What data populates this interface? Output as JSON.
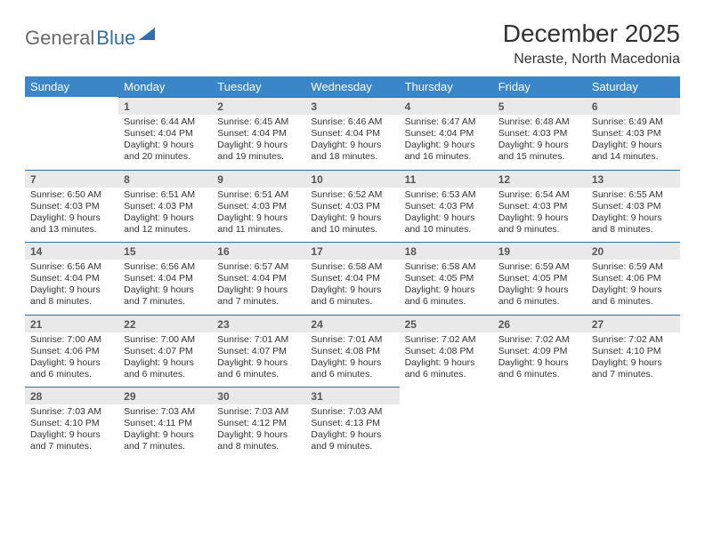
{
  "brand": {
    "part1": "General",
    "part2": "Blue"
  },
  "title": "December 2025",
  "location": "Neraste, North Macedonia",
  "colors": {
    "header_bg": "#3a86c8",
    "header_text": "#ffffff",
    "daynum_bg": "#e9e9e9",
    "rule": "#2f6fab",
    "text": "#333333"
  },
  "weekdays": [
    "Sunday",
    "Monday",
    "Tuesday",
    "Wednesday",
    "Thursday",
    "Friday",
    "Saturday"
  ],
  "weeks": [
    [
      {
        "n": "",
        "sunrise": "",
        "sunset": "",
        "daylight": ""
      },
      {
        "n": "1",
        "sunrise": "Sunrise: 6:44 AM",
        "sunset": "Sunset: 4:04 PM",
        "daylight": "Daylight: 9 hours and 20 minutes."
      },
      {
        "n": "2",
        "sunrise": "Sunrise: 6:45 AM",
        "sunset": "Sunset: 4:04 PM",
        "daylight": "Daylight: 9 hours and 19 minutes."
      },
      {
        "n": "3",
        "sunrise": "Sunrise: 6:46 AM",
        "sunset": "Sunset: 4:04 PM",
        "daylight": "Daylight: 9 hours and 18 minutes."
      },
      {
        "n": "4",
        "sunrise": "Sunrise: 6:47 AM",
        "sunset": "Sunset: 4:04 PM",
        "daylight": "Daylight: 9 hours and 16 minutes."
      },
      {
        "n": "5",
        "sunrise": "Sunrise: 6:48 AM",
        "sunset": "Sunset: 4:03 PM",
        "daylight": "Daylight: 9 hours and 15 minutes."
      },
      {
        "n": "6",
        "sunrise": "Sunrise: 6:49 AM",
        "sunset": "Sunset: 4:03 PM",
        "daylight": "Daylight: 9 hours and 14 minutes."
      }
    ],
    [
      {
        "n": "7",
        "sunrise": "Sunrise: 6:50 AM",
        "sunset": "Sunset: 4:03 PM",
        "daylight": "Daylight: 9 hours and 13 minutes."
      },
      {
        "n": "8",
        "sunrise": "Sunrise: 6:51 AM",
        "sunset": "Sunset: 4:03 PM",
        "daylight": "Daylight: 9 hours and 12 minutes."
      },
      {
        "n": "9",
        "sunrise": "Sunrise: 6:51 AM",
        "sunset": "Sunset: 4:03 PM",
        "daylight": "Daylight: 9 hours and 11 minutes."
      },
      {
        "n": "10",
        "sunrise": "Sunrise: 6:52 AM",
        "sunset": "Sunset: 4:03 PM",
        "daylight": "Daylight: 9 hours and 10 minutes."
      },
      {
        "n": "11",
        "sunrise": "Sunrise: 6:53 AM",
        "sunset": "Sunset: 4:03 PM",
        "daylight": "Daylight: 9 hours and 10 minutes."
      },
      {
        "n": "12",
        "sunrise": "Sunrise: 6:54 AM",
        "sunset": "Sunset: 4:03 PM",
        "daylight": "Daylight: 9 hours and 9 minutes."
      },
      {
        "n": "13",
        "sunrise": "Sunrise: 6:55 AM",
        "sunset": "Sunset: 4:03 PM",
        "daylight": "Daylight: 9 hours and 8 minutes."
      }
    ],
    [
      {
        "n": "14",
        "sunrise": "Sunrise: 6:56 AM",
        "sunset": "Sunset: 4:04 PM",
        "daylight": "Daylight: 9 hours and 8 minutes."
      },
      {
        "n": "15",
        "sunrise": "Sunrise: 6:56 AM",
        "sunset": "Sunset: 4:04 PM",
        "daylight": "Daylight: 9 hours and 7 minutes."
      },
      {
        "n": "16",
        "sunrise": "Sunrise: 6:57 AM",
        "sunset": "Sunset: 4:04 PM",
        "daylight": "Daylight: 9 hours and 7 minutes."
      },
      {
        "n": "17",
        "sunrise": "Sunrise: 6:58 AM",
        "sunset": "Sunset: 4:04 PM",
        "daylight": "Daylight: 9 hours and 6 minutes."
      },
      {
        "n": "18",
        "sunrise": "Sunrise: 6:58 AM",
        "sunset": "Sunset: 4:05 PM",
        "daylight": "Daylight: 9 hours and 6 minutes."
      },
      {
        "n": "19",
        "sunrise": "Sunrise: 6:59 AM",
        "sunset": "Sunset: 4:05 PM",
        "daylight": "Daylight: 9 hours and 6 minutes."
      },
      {
        "n": "20",
        "sunrise": "Sunrise: 6:59 AM",
        "sunset": "Sunset: 4:06 PM",
        "daylight": "Daylight: 9 hours and 6 minutes."
      }
    ],
    [
      {
        "n": "21",
        "sunrise": "Sunrise: 7:00 AM",
        "sunset": "Sunset: 4:06 PM",
        "daylight": "Daylight: 9 hours and 6 minutes."
      },
      {
        "n": "22",
        "sunrise": "Sunrise: 7:00 AM",
        "sunset": "Sunset: 4:07 PM",
        "daylight": "Daylight: 9 hours and 6 minutes."
      },
      {
        "n": "23",
        "sunrise": "Sunrise: 7:01 AM",
        "sunset": "Sunset: 4:07 PM",
        "daylight": "Daylight: 9 hours and 6 minutes."
      },
      {
        "n": "24",
        "sunrise": "Sunrise: 7:01 AM",
        "sunset": "Sunset: 4:08 PM",
        "daylight": "Daylight: 9 hours and 6 minutes."
      },
      {
        "n": "25",
        "sunrise": "Sunrise: 7:02 AM",
        "sunset": "Sunset: 4:08 PM",
        "daylight": "Daylight: 9 hours and 6 minutes."
      },
      {
        "n": "26",
        "sunrise": "Sunrise: 7:02 AM",
        "sunset": "Sunset: 4:09 PM",
        "daylight": "Daylight: 9 hours and 6 minutes."
      },
      {
        "n": "27",
        "sunrise": "Sunrise: 7:02 AM",
        "sunset": "Sunset: 4:10 PM",
        "daylight": "Daylight: 9 hours and 7 minutes."
      }
    ],
    [
      {
        "n": "28",
        "sunrise": "Sunrise: 7:03 AM",
        "sunset": "Sunset: 4:10 PM",
        "daylight": "Daylight: 9 hours and 7 minutes."
      },
      {
        "n": "29",
        "sunrise": "Sunrise: 7:03 AM",
        "sunset": "Sunset: 4:11 PM",
        "daylight": "Daylight: 9 hours and 7 minutes."
      },
      {
        "n": "30",
        "sunrise": "Sunrise: 7:03 AM",
        "sunset": "Sunset: 4:12 PM",
        "daylight": "Daylight: 9 hours and 8 minutes."
      },
      {
        "n": "31",
        "sunrise": "Sunrise: 7:03 AM",
        "sunset": "Sunset: 4:13 PM",
        "daylight": "Daylight: 9 hours and 9 minutes."
      },
      {
        "n": "",
        "sunrise": "",
        "sunset": "",
        "daylight": ""
      },
      {
        "n": "",
        "sunrise": "",
        "sunset": "",
        "daylight": ""
      },
      {
        "n": "",
        "sunrise": "",
        "sunset": "",
        "daylight": ""
      }
    ]
  ]
}
